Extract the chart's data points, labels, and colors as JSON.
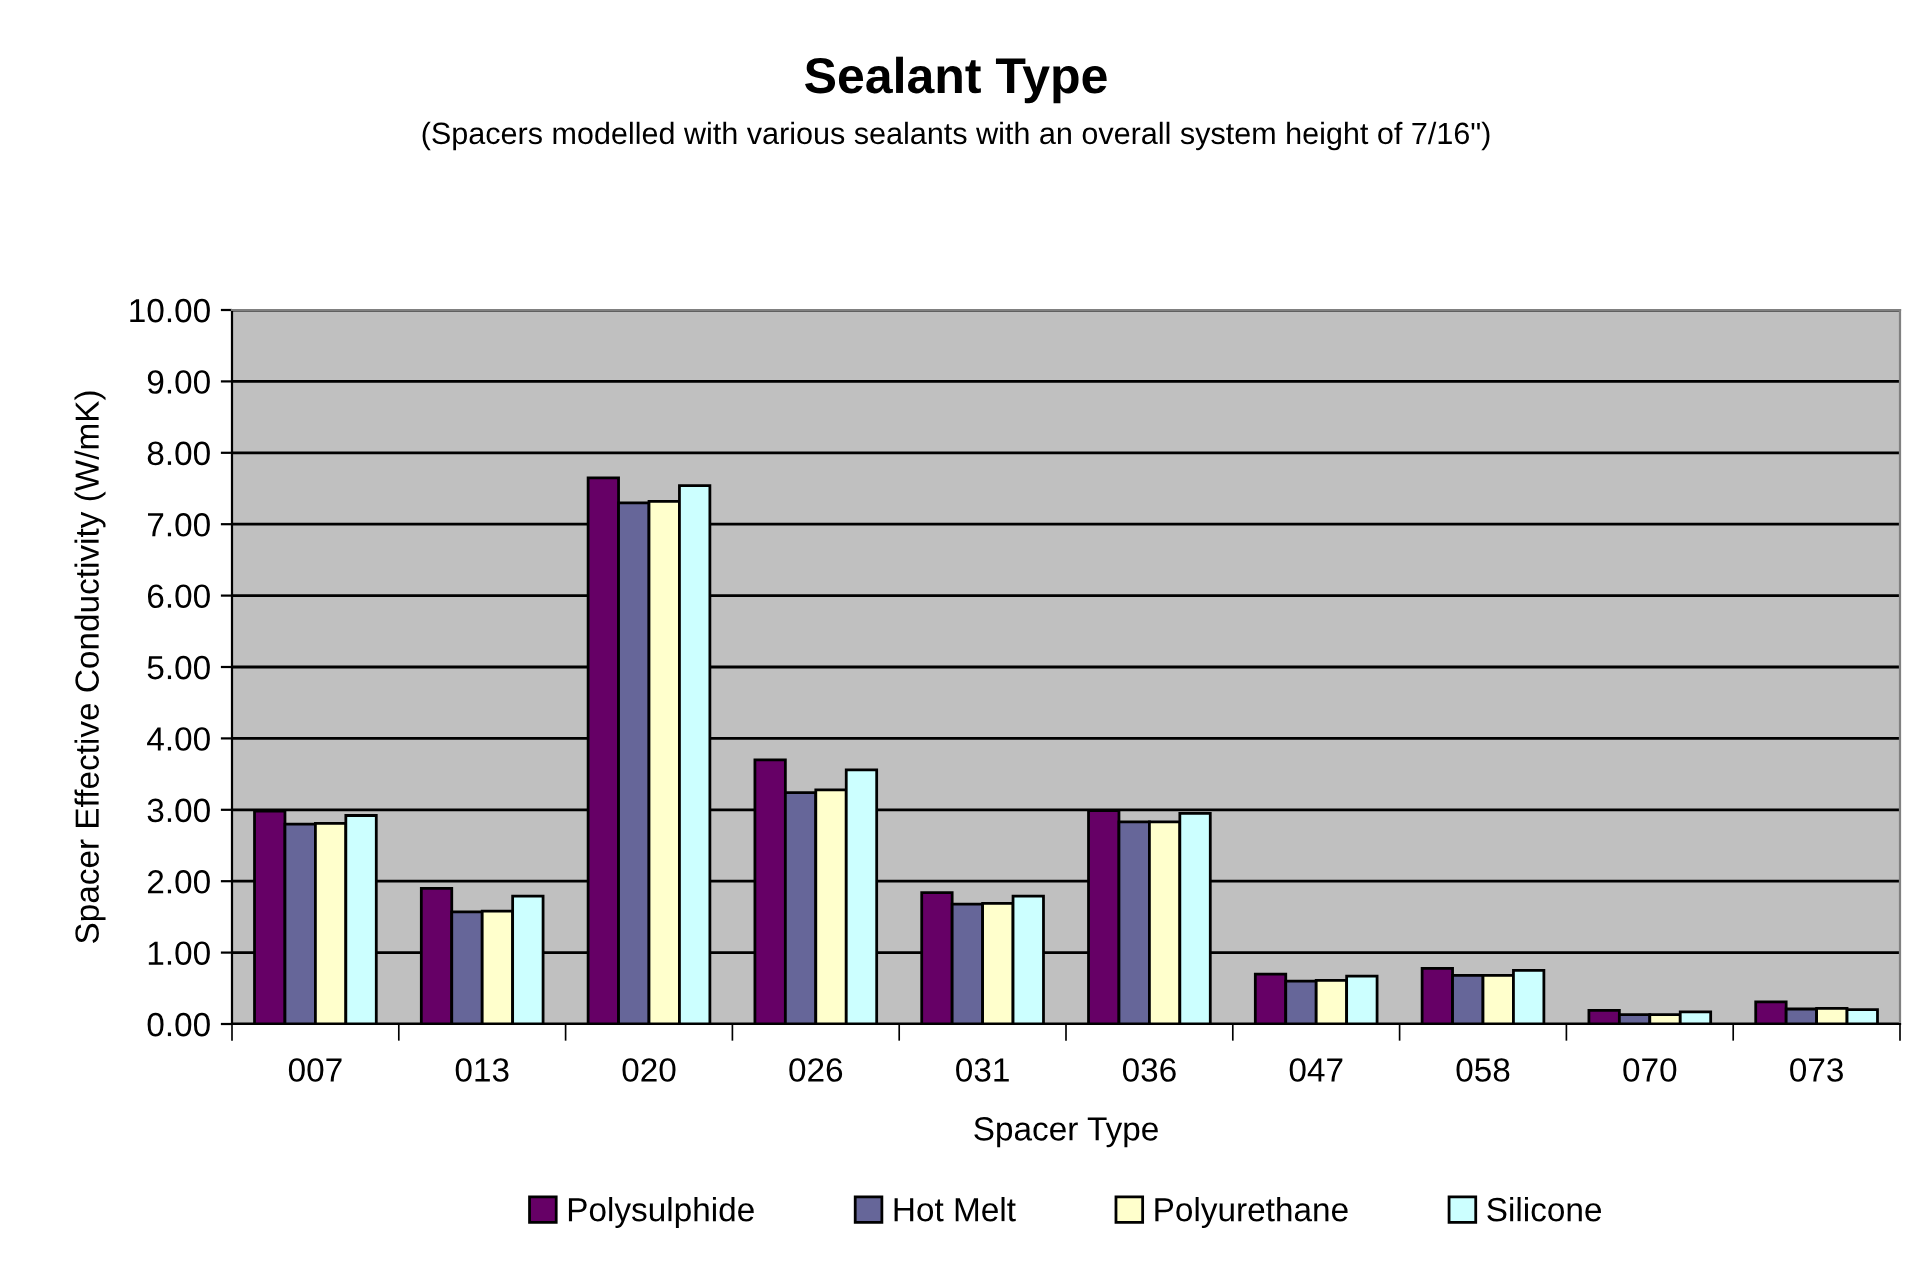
{
  "chart_data": {
    "type": "bar",
    "title": "Sealant Type",
    "subtitle": "(Spacers modelled with various sealants with an overall system height of 7/16\")",
    "xlabel": "Spacer Type",
    "ylabel": "Spacer Effective Conductivity (W/mK)",
    "categories": [
      "007",
      "013",
      "020",
      "026",
      "031",
      "036",
      "047",
      "058",
      "070",
      "073"
    ],
    "series": [
      {
        "name": "Polysulphide",
        "color": "#660066",
        "values": [
          2.98,
          1.9,
          7.65,
          3.7,
          1.84,
          2.99,
          0.7,
          0.78,
          0.19,
          0.31
        ]
      },
      {
        "name": "Hot Melt",
        "color": "#666699",
        "values": [
          2.8,
          1.57,
          7.3,
          3.24,
          1.68,
          2.83,
          0.6,
          0.68,
          0.13,
          0.21
        ]
      },
      {
        "name": "Polyurethane",
        "color": "#ffffcc",
        "values": [
          2.81,
          1.58,
          7.32,
          3.28,
          1.69,
          2.83,
          0.61,
          0.68,
          0.13,
          0.22
        ]
      },
      {
        "name": "Silicone",
        "color": "#ccffff",
        "values": [
          2.92,
          1.79,
          7.54,
          3.56,
          1.79,
          2.95,
          0.67,
          0.75,
          0.17,
          0.2
        ]
      }
    ],
    "ylim": [
      0,
      10
    ],
    "yticks": [
      {
        "value": 0,
        "label": "0.00"
      },
      {
        "value": 1,
        "label": "1.00"
      },
      {
        "value": 2,
        "label": "2.00"
      },
      {
        "value": 3,
        "label": "3.00"
      },
      {
        "value": 4,
        "label": "4.00"
      },
      {
        "value": 5,
        "label": "5.00"
      },
      {
        "value": 6,
        "label": "6.00"
      },
      {
        "value": 7,
        "label": "7.00"
      },
      {
        "value": 8,
        "label": "8.00"
      },
      {
        "value": 9,
        "label": "9.00"
      },
      {
        "value": 10,
        "label": "10.00"
      }
    ],
    "grid": "y",
    "legend": "bottom"
  }
}
